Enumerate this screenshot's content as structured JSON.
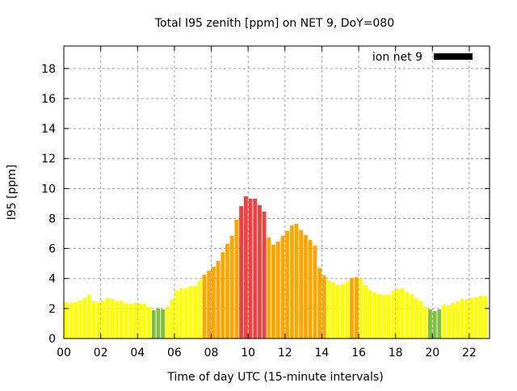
{
  "chart_data": {
    "type": "bar",
    "title": "Total I95 zenith [ppm] on NET 9, DoY=080",
    "xlabel": "Time of day UTC (15-minute intervals)",
    "ylabel": "I95 [ppm]",
    "xlim": [
      0,
      23.1
    ],
    "ylim": [
      0,
      19.5
    ],
    "grid": true,
    "legend": {
      "label": "ion net 9",
      "placement": "top-right"
    },
    "x_ticks": [
      "00",
      "02",
      "04",
      "06",
      "08",
      "10",
      "12",
      "14",
      "16",
      "18",
      "20",
      "22"
    ],
    "y_ticks": [
      "0",
      "2",
      "4",
      "6",
      "8",
      "10",
      "12",
      "14",
      "16",
      "18"
    ],
    "bin_hours": 0.25,
    "color_thresholds": [
      {
        "below": 2,
        "color": "#80c040"
      },
      {
        "below": 4,
        "color": "#ffff00"
      },
      {
        "below": 8,
        "color": "#ffa500"
      },
      {
        "below": 1000,
        "color": "#f04040"
      }
    ],
    "values": [
      2.42,
      2.37,
      2.42,
      2.53,
      2.69,
      2.91,
      2.48,
      2.42,
      2.53,
      2.69,
      2.64,
      2.48,
      2.53,
      2.32,
      2.32,
      2.37,
      2.32,
      2.32,
      2.1,
      1.89,
      1.99,
      1.94,
      2.1,
      2.59,
      3.18,
      3.34,
      3.34,
      3.5,
      3.5,
      3.88,
      4.25,
      4.52,
      4.79,
      5.17,
      5.76,
      6.3,
      6.84,
      7.92,
      8.83,
      9.48,
      9.32,
      9.32,
      8.89,
      8.46,
      6.73,
      6.25,
      6.46,
      6.84,
      7.16,
      7.54,
      7.65,
      7.22,
      6.89,
      6.57,
      6.19,
      4.69,
      4.2,
      3.88,
      3.72,
      3.55,
      3.61,
      3.82,
      4.04,
      4.09,
      3.99,
      3.55,
      3.23,
      3.07,
      2.96,
      2.91,
      2.91,
      3.18,
      3.29,
      3.34,
      3.07,
      2.96,
      2.69,
      2.48,
      2.1,
      1.94,
      1.83,
      1.94,
      2.26,
      2.21,
      2.37,
      2.48,
      2.64,
      2.59,
      2.69,
      2.75,
      2.85,
      2.8
    ]
  }
}
